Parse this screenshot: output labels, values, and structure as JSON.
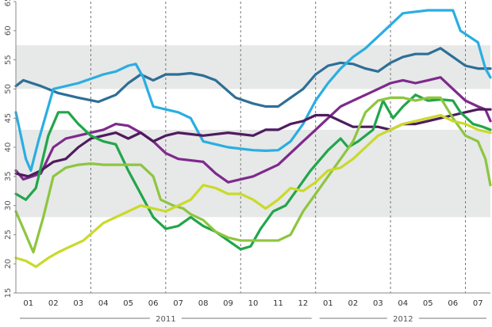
{
  "chart_data": {
    "type": "line",
    "title": "",
    "xlabel": "",
    "ylabel": "",
    "ylim": [
      15,
      65
    ],
    "yticks": [
      15,
      20,
      25,
      30,
      35,
      40,
      45,
      50,
      55,
      60,
      65
    ],
    "shaded_bands": [
      [
        28,
        43
      ],
      [
        50,
        57.5
      ]
    ],
    "x_months": [
      "01",
      "02",
      "03",
      "04",
      "05",
      "06",
      "07",
      "08",
      "09",
      "10",
      "11",
      "12",
      "01",
      "02",
      "03",
      "04",
      "05",
      "06",
      "07"
    ],
    "x_range": [
      0.5,
      19.5
    ],
    "month_separators": [
      3,
      6,
      9,
      12,
      15,
      18
    ],
    "year_labels": [
      {
        "label": "2011",
        "x_from": 0.5,
        "x_to": 12.5
      },
      {
        "label": "2012",
        "x_from": 12.5,
        "x_to": 19.5
      }
    ],
    "legend": "none",
    "grid": false,
    "series": [
      {
        "color": "#2d6f97",
        "points": [
          [
            0.5,
            50.5
          ],
          [
            0.8,
            51.5
          ],
          [
            1.5,
            50.5
          ],
          [
            2.2,
            49.3
          ],
          [
            3,
            48.5
          ],
          [
            3.8,
            47.8
          ],
          [
            4.5,
            49
          ],
          [
            5,
            51
          ],
          [
            5.5,
            52.5
          ],
          [
            6,
            51.5
          ],
          [
            6.5,
            52.5
          ],
          [
            7,
            52.5
          ],
          [
            7.5,
            52.7
          ],
          [
            8,
            52.3
          ],
          [
            8.5,
            51.5
          ],
          [
            9.3,
            48.5
          ],
          [
            10,
            47.5
          ],
          [
            10.5,
            47
          ],
          [
            11,
            47
          ],
          [
            11.5,
            48.5
          ],
          [
            12,
            50
          ],
          [
            12.5,
            52.5
          ],
          [
            13,
            54
          ],
          [
            13.5,
            54.5
          ],
          [
            14,
            54.3
          ],
          [
            14.5,
            53.5
          ],
          [
            15,
            53
          ],
          [
            15.5,
            54.5
          ],
          [
            16,
            55.5
          ],
          [
            16.5,
            56
          ],
          [
            17,
            56
          ],
          [
            17.5,
            57
          ],
          [
            18,
            55.5
          ],
          [
            18.5,
            54
          ],
          [
            19,
            53.5
          ],
          [
            19.5,
            53.5
          ]
        ]
      },
      {
        "color": "#2aaee2",
        "points": [
          [
            0.5,
            46
          ],
          [
            0.9,
            38
          ],
          [
            1.1,
            36
          ],
          [
            1.4,
            41
          ],
          [
            2,
            50
          ],
          [
            3,
            51
          ],
          [
            4,
            52.5
          ],
          [
            4.5,
            53
          ],
          [
            5,
            54
          ],
          [
            5.3,
            54.3
          ],
          [
            5.6,
            52
          ],
          [
            6,
            47
          ],
          [
            6.5,
            46.5
          ],
          [
            7,
            46
          ],
          [
            7.5,
            45
          ],
          [
            8,
            41
          ],
          [
            8.5,
            40.5
          ],
          [
            9,
            40
          ],
          [
            10,
            39.5
          ],
          [
            10.5,
            39.4
          ],
          [
            11,
            39.5
          ],
          [
            11.5,
            41
          ],
          [
            12,
            44
          ],
          [
            12.5,
            48
          ],
          [
            13,
            51
          ],
          [
            13.5,
            53.5
          ],
          [
            14,
            55.5
          ],
          [
            14.5,
            57
          ],
          [
            15,
            59
          ],
          [
            15.5,
            61
          ],
          [
            16,
            63
          ],
          [
            17,
            63.5
          ],
          [
            18,
            63.5
          ],
          [
            18.3,
            60
          ],
          [
            19,
            58
          ],
          [
            19.3,
            53.5
          ],
          [
            19.5,
            52
          ]
        ]
      },
      {
        "color": "#7e2a8c",
        "points": [
          [
            0.5,
            36
          ],
          [
            0.8,
            34.5
          ],
          [
            1.5,
            35.5
          ],
          [
            2,
            40
          ],
          [
            2.5,
            41.5
          ],
          [
            3,
            42
          ],
          [
            4,
            43
          ],
          [
            4.5,
            44
          ],
          [
            5,
            43.7
          ],
          [
            5.5,
            42.5
          ],
          [
            6,
            41
          ],
          [
            6.5,
            39
          ],
          [
            7,
            38
          ],
          [
            8,
            37.5
          ],
          [
            8.5,
            35.5
          ],
          [
            9,
            34
          ],
          [
            10,
            35
          ],
          [
            10.5,
            36
          ],
          [
            11,
            37
          ],
          [
            12,
            41
          ],
          [
            12.5,
            43
          ],
          [
            13,
            45
          ],
          [
            13.5,
            47
          ],
          [
            14,
            48
          ],
          [
            14.5,
            49
          ],
          [
            15,
            50
          ],
          [
            15.5,
            51
          ],
          [
            16,
            51.5
          ],
          [
            16.5,
            51
          ],
          [
            17,
            51.5
          ],
          [
            17.5,
            52
          ],
          [
            18,
            50
          ],
          [
            18.5,
            48
          ],
          [
            19,
            47
          ],
          [
            19.3,
            46.5
          ],
          [
            19.5,
            44.5
          ]
        ]
      },
      {
        "color": "#4e1c5e",
        "points": [
          [
            0.5,
            35.5
          ],
          [
            1,
            35
          ],
          [
            1.5,
            36
          ],
          [
            2,
            37.5
          ],
          [
            2.5,
            38
          ],
          [
            3,
            40
          ],
          [
            3.5,
            41.5
          ],
          [
            4,
            42
          ],
          [
            4.5,
            42.5
          ],
          [
            5,
            41.5
          ],
          [
            5.5,
            42.5
          ],
          [
            6,
            41
          ],
          [
            6.5,
            42
          ],
          [
            7,
            42.5
          ],
          [
            8,
            42
          ],
          [
            9,
            42.5
          ],
          [
            10,
            42
          ],
          [
            10.5,
            43
          ],
          [
            11,
            43
          ],
          [
            11.5,
            44
          ],
          [
            12,
            44.5
          ],
          [
            12.5,
            45.5
          ],
          [
            13,
            45.5
          ],
          [
            13.5,
            44.5
          ],
          [
            14,
            43.5
          ],
          [
            15,
            43.5
          ],
          [
            15.5,
            43
          ],
          [
            16,
            44
          ],
          [
            16.5,
            44
          ],
          [
            17,
            44.5
          ],
          [
            17.5,
            45
          ],
          [
            18,
            45.5
          ],
          [
            18.5,
            46
          ],
          [
            19,
            46.5
          ],
          [
            19.5,
            46.5
          ]
        ]
      },
      {
        "color": "#21a64a",
        "points": [
          [
            0.5,
            32
          ],
          [
            0.9,
            31
          ],
          [
            1.3,
            33
          ],
          [
            1.8,
            42
          ],
          [
            2.2,
            46
          ],
          [
            2.6,
            46
          ],
          [
            3,
            44
          ],
          [
            3.5,
            42
          ],
          [
            4,
            41
          ],
          [
            4.5,
            40.5
          ],
          [
            5,
            36
          ],
          [
            5.5,
            32
          ],
          [
            6,
            28
          ],
          [
            6.5,
            26
          ],
          [
            7,
            26.5
          ],
          [
            7.5,
            28
          ],
          [
            8,
            26.5
          ],
          [
            8.5,
            25.5
          ],
          [
            9,
            24
          ],
          [
            9.5,
            22.5
          ],
          [
            9.9,
            23
          ],
          [
            10.3,
            26
          ],
          [
            10.8,
            29
          ],
          [
            11.3,
            30
          ],
          [
            11.8,
            33
          ],
          [
            12.3,
            36
          ],
          [
            13,
            39.5
          ],
          [
            13.5,
            41.5
          ],
          [
            13.8,
            40
          ],
          [
            14.2,
            41
          ],
          [
            14.8,
            43
          ],
          [
            15.2,
            48
          ],
          [
            15.6,
            45
          ],
          [
            16,
            47
          ],
          [
            16.5,
            49
          ],
          [
            17,
            48
          ],
          [
            17.5,
            48.2
          ],
          [
            18,
            48
          ],
          [
            18.3,
            46
          ],
          [
            18.8,
            44
          ],
          [
            19.2,
            43.5
          ],
          [
            19.5,
            43
          ]
        ]
      },
      {
        "color": "#8dc63f",
        "points": [
          [
            0.5,
            29
          ],
          [
            0.9,
            25
          ],
          [
            1.2,
            22
          ],
          [
            1.6,
            28
          ],
          [
            2,
            35
          ],
          [
            2.5,
            36.5
          ],
          [
            3,
            37
          ],
          [
            3.5,
            37.2
          ],
          [
            4,
            37
          ],
          [
            5,
            37
          ],
          [
            5.5,
            37
          ],
          [
            6,
            35
          ],
          [
            6.3,
            31
          ],
          [
            6.8,
            30
          ],
          [
            7.2,
            29.5
          ],
          [
            7.5,
            28.5
          ],
          [
            8,
            27.5
          ],
          [
            8.5,
            25.5
          ],
          [
            9,
            24.5
          ],
          [
            9.5,
            24
          ],
          [
            10,
            24
          ],
          [
            11,
            24
          ],
          [
            11.5,
            25
          ],
          [
            12,
            29
          ],
          [
            12.5,
            32
          ],
          [
            13,
            35
          ],
          [
            13.5,
            38
          ],
          [
            14,
            41
          ],
          [
            14.5,
            46
          ],
          [
            15,
            48
          ],
          [
            15.5,
            48.5
          ],
          [
            16,
            48.5
          ],
          [
            16.5,
            48
          ],
          [
            17,
            48.5
          ],
          [
            17.5,
            48.5
          ],
          [
            18,
            45
          ],
          [
            18.5,
            42
          ],
          [
            19,
            41
          ],
          [
            19.3,
            38
          ],
          [
            19.5,
            33.5
          ]
        ]
      },
      {
        "color": "#c9da2a",
        "points": [
          [
            0.5,
            21
          ],
          [
            0.9,
            20.5
          ],
          [
            1.3,
            19.5
          ],
          [
            1.8,
            21
          ],
          [
            2.2,
            22
          ],
          [
            2.7,
            23
          ],
          [
            3.2,
            24
          ],
          [
            4,
            27
          ],
          [
            4.5,
            28
          ],
          [
            5,
            29
          ],
          [
            5.5,
            30
          ],
          [
            6,
            29.5
          ],
          [
            6.5,
            29
          ],
          [
            7,
            30
          ],
          [
            7.5,
            31
          ],
          [
            8,
            33.5
          ],
          [
            8.5,
            33
          ],
          [
            9,
            32
          ],
          [
            9.5,
            32
          ],
          [
            10,
            31
          ],
          [
            10.5,
            29.5
          ],
          [
            11,
            31
          ],
          [
            11.5,
            33
          ],
          [
            12,
            32.5
          ],
          [
            12.5,
            34
          ],
          [
            13,
            36
          ],
          [
            13.5,
            36.5
          ],
          [
            14,
            38
          ],
          [
            14.5,
            40
          ],
          [
            15,
            42
          ],
          [
            15.5,
            43
          ],
          [
            16,
            44
          ],
          [
            16.5,
            44.5
          ],
          [
            17,
            45
          ],
          [
            17.5,
            45.5
          ],
          [
            18,
            44.5
          ],
          [
            18.5,
            44
          ],
          [
            19,
            43
          ],
          [
            19.5,
            42.5
          ]
        ]
      }
    ]
  }
}
